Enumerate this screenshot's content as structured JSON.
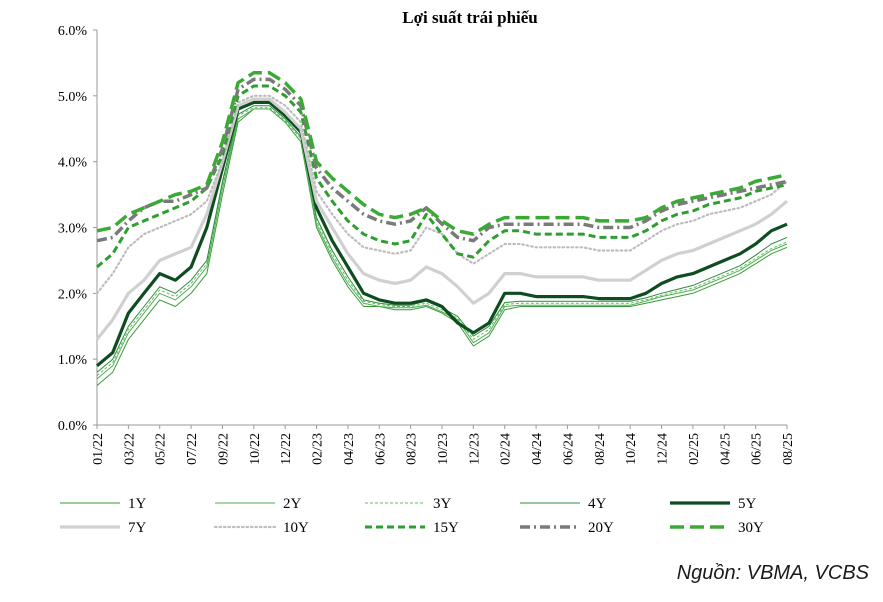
{
  "source": "Nguồn: VBMA, VCBS",
  "chart_data": {
    "type": "line",
    "title": "Lợi suất trái phiếu",
    "xlabel": "",
    "ylabel": "",
    "ylim": [
      0,
      6
    ],
    "y_ticks": [
      "0.0%",
      "1.0%",
      "2.0%",
      "3.0%",
      "4.0%",
      "5.0%",
      "6.0%"
    ],
    "x_tick_labels": [
      "01/22",
      "03/22",
      "05/22",
      "07/22",
      "09/22",
      "10/22",
      "12/22",
      "02/23",
      "04/23",
      "06/23",
      "08/23",
      "10/23",
      "12/23",
      "02/24",
      "04/24",
      "06/24",
      "08/24",
      "10/24",
      "12/24",
      "02/25",
      "04/25",
      "06/25",
      "08/25"
    ],
    "x": [
      "01/22",
      "02/22",
      "03/22",
      "04/22",
      "05/22",
      "06/22",
      "07/22",
      "08/22",
      "09/22",
      "10/22",
      "11/22",
      "12/22",
      "01/23",
      "02/23",
      "03/23",
      "04/23",
      "05/23",
      "06/23",
      "07/23",
      "08/23",
      "09/23",
      "10/23",
      "11/23",
      "12/23",
      "01/24",
      "02/24",
      "03/24",
      "04/24",
      "05/24",
      "06/24",
      "07/24",
      "08/24",
      "09/24",
      "10/24",
      "11/24",
      "12/24",
      "01/25",
      "02/25",
      "03/25",
      "04/25",
      "05/25",
      "06/25",
      "07/25",
      "08/25",
      "09/25"
    ],
    "grid": false,
    "legend_position": "bottom",
    "series": [
      {
        "name": "1Y",
        "color": "#3a9a3a",
        "style": "thin",
        "values": [
          0.6,
          0.8,
          1.3,
          1.6,
          1.9,
          1.8,
          2.0,
          2.3,
          3.5,
          4.6,
          4.8,
          4.8,
          4.6,
          4.3,
          3.0,
          2.5,
          2.1,
          1.8,
          1.8,
          1.75,
          1.75,
          1.8,
          1.7,
          1.55,
          1.2,
          1.35,
          1.75,
          1.8,
          1.8,
          1.8,
          1.8,
          1.8,
          1.8,
          1.8,
          1.8,
          1.85,
          1.9,
          1.95,
          2.0,
          2.1,
          2.2,
          2.3,
          2.45,
          2.6,
          2.7
        ]
      },
      {
        "name": "2Y",
        "color": "#4caf50",
        "style": "thin",
        "values": [
          0.7,
          0.9,
          1.4,
          1.7,
          2.0,
          1.9,
          2.1,
          2.4,
          3.6,
          4.65,
          4.8,
          4.8,
          4.6,
          4.3,
          3.05,
          2.55,
          2.15,
          1.85,
          1.8,
          1.78,
          1.78,
          1.82,
          1.72,
          1.6,
          1.25,
          1.4,
          1.8,
          1.82,
          1.82,
          1.82,
          1.82,
          1.82,
          1.82,
          1.82,
          1.82,
          1.88,
          1.95,
          2.0,
          2.05,
          2.15,
          2.25,
          2.35,
          2.5,
          2.65,
          2.75
        ]
      },
      {
        "name": "3Y",
        "color": "#5cbf5c",
        "style": "dash-thin",
        "values": [
          0.75,
          0.95,
          1.45,
          1.75,
          2.05,
          1.95,
          2.15,
          2.45,
          3.65,
          4.7,
          4.82,
          4.82,
          4.62,
          4.35,
          3.1,
          2.6,
          2.2,
          1.88,
          1.83,
          1.8,
          1.8,
          1.85,
          1.75,
          1.62,
          1.3,
          1.45,
          1.83,
          1.85,
          1.85,
          1.85,
          1.85,
          1.85,
          1.85,
          1.85,
          1.85,
          1.9,
          1.97,
          2.03,
          2.08,
          2.18,
          2.28,
          2.38,
          2.53,
          2.68,
          2.78
        ]
      },
      {
        "name": "4Y",
        "color": "#2e8b3e",
        "style": "thin",
        "values": [
          0.8,
          1.0,
          1.5,
          1.8,
          2.1,
          2.0,
          2.2,
          2.5,
          3.7,
          4.72,
          4.85,
          4.85,
          4.65,
          4.38,
          3.15,
          2.65,
          2.25,
          1.9,
          1.85,
          1.82,
          1.82,
          1.88,
          1.78,
          1.65,
          1.35,
          1.5,
          1.86,
          1.88,
          1.88,
          1.88,
          1.88,
          1.88,
          1.88,
          1.88,
          1.88,
          1.93,
          2.0,
          2.06,
          2.12,
          2.22,
          2.32,
          2.42,
          2.58,
          2.75,
          2.85
        ]
      },
      {
        "name": "5Y",
        "color": "#0d4d1f",
        "style": "thick",
        "values": [
          0.9,
          1.1,
          1.7,
          2.0,
          2.3,
          2.2,
          2.4,
          3.0,
          3.9,
          4.8,
          4.9,
          4.9,
          4.7,
          4.45,
          3.3,
          2.8,
          2.4,
          2.0,
          1.9,
          1.85,
          1.85,
          1.9,
          1.8,
          1.55,
          1.4,
          1.55,
          2.0,
          2.0,
          1.95,
          1.95,
          1.95,
          1.95,
          1.92,
          1.92,
          1.92,
          2.0,
          2.15,
          2.25,
          2.3,
          2.4,
          2.5,
          2.6,
          2.75,
          2.95,
          3.05
        ]
      },
      {
        "name": "7Y",
        "color": "#d0d0d0",
        "style": "thick",
        "values": [
          1.3,
          1.6,
          2.0,
          2.2,
          2.5,
          2.6,
          2.7,
          3.2,
          4.0,
          4.85,
          4.95,
          4.95,
          4.75,
          4.5,
          3.4,
          3.0,
          2.6,
          2.3,
          2.2,
          2.15,
          2.2,
          2.4,
          2.3,
          2.1,
          1.85,
          2.0,
          2.3,
          2.3,
          2.25,
          2.25,
          2.25,
          2.25,
          2.2,
          2.2,
          2.2,
          2.35,
          2.5,
          2.6,
          2.65,
          2.75,
          2.85,
          2.95,
          3.05,
          3.2,
          3.4
        ]
      },
      {
        "name": "10Y",
        "color": "#bdbdbd",
        "style": "dotted",
        "values": [
          2.0,
          2.3,
          2.7,
          2.9,
          3.0,
          3.1,
          3.2,
          3.4,
          4.0,
          4.9,
          5.0,
          5.0,
          4.85,
          4.6,
          3.55,
          3.2,
          2.9,
          2.7,
          2.65,
          2.6,
          2.65,
          3.0,
          2.9,
          2.6,
          2.45,
          2.6,
          2.75,
          2.75,
          2.7,
          2.7,
          2.7,
          2.7,
          2.65,
          2.65,
          2.65,
          2.8,
          2.95,
          3.05,
          3.1,
          3.2,
          3.25,
          3.3,
          3.4,
          3.5,
          3.7
        ]
      },
      {
        "name": "15Y",
        "color": "#2e9e30",
        "style": "dash",
        "values": [
          2.4,
          2.6,
          3.0,
          3.1,
          3.2,
          3.3,
          3.4,
          3.6,
          4.1,
          5.0,
          5.15,
          5.15,
          5.0,
          4.75,
          3.75,
          3.4,
          3.1,
          2.9,
          2.8,
          2.75,
          2.8,
          3.2,
          2.9,
          2.6,
          2.55,
          2.8,
          2.95,
          2.95,
          2.9,
          2.9,
          2.9,
          2.9,
          2.85,
          2.85,
          2.85,
          2.95,
          3.1,
          3.2,
          3.25,
          3.35,
          3.4,
          3.45,
          3.55,
          3.6,
          3.65
        ]
      },
      {
        "name": "20Y",
        "color": "#7a7a7a",
        "style": "dashdot",
        "values": [
          2.8,
          2.85,
          3.1,
          3.3,
          3.4,
          3.4,
          3.5,
          3.6,
          4.2,
          5.1,
          5.25,
          5.25,
          5.1,
          4.85,
          3.9,
          3.6,
          3.4,
          3.2,
          3.1,
          3.05,
          3.1,
          3.3,
          3.05,
          2.85,
          2.8,
          3.0,
          3.05,
          3.05,
          3.05,
          3.05,
          3.05,
          3.05,
          3.0,
          3.0,
          3.0,
          3.1,
          3.25,
          3.35,
          3.4,
          3.45,
          3.5,
          3.55,
          3.6,
          3.65,
          3.7
        ]
      },
      {
        "name": "30Y",
        "color": "#3aaa35",
        "style": "longdash",
        "values": [
          2.95,
          3.0,
          3.2,
          3.3,
          3.4,
          3.5,
          3.55,
          3.65,
          4.3,
          5.2,
          5.35,
          5.35,
          5.2,
          4.95,
          4.0,
          3.75,
          3.55,
          3.35,
          3.2,
          3.15,
          3.2,
          3.3,
          3.1,
          2.95,
          2.9,
          3.05,
          3.15,
          3.15,
          3.15,
          3.15,
          3.15,
          3.15,
          3.1,
          3.1,
          3.1,
          3.15,
          3.3,
          3.4,
          3.45,
          3.5,
          3.55,
          3.6,
          3.7,
          3.75,
          3.8
        ]
      }
    ]
  }
}
